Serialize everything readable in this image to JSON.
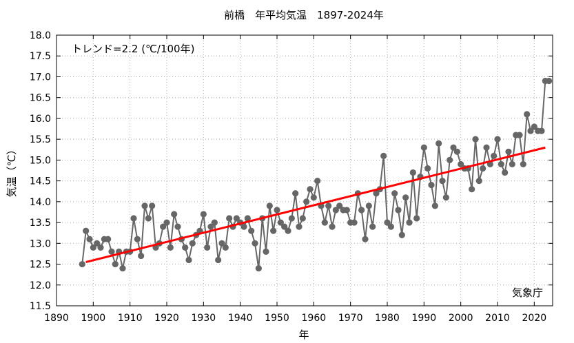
{
  "chart_data": {
    "type": "line",
    "title": "前橋　年平均気温　1897-2024年",
    "xlabel": "年",
    "ylabel": "気温（℃）",
    "trend_label": "トレンド=2.2 (℃/100年)",
    "source_label": "気象庁",
    "xlim": [
      1890,
      2025
    ],
    "ylim": [
      11.5,
      18.0
    ],
    "xticks": [
      1890,
      1900,
      1910,
      1920,
      1930,
      1940,
      1950,
      1960,
      1970,
      1980,
      1990,
      2000,
      2010,
      2020
    ],
    "yticks": [
      11.5,
      12.0,
      12.5,
      13.0,
      13.5,
      14.0,
      14.5,
      15.0,
      15.5,
      16.0,
      16.5,
      17.0,
      17.5,
      18.0
    ],
    "grid": true,
    "colors": {
      "series": "#666666",
      "trend": "#ff0000",
      "grid": "#aaaaaa"
    },
    "series": [
      {
        "name": "年平均気温",
        "x": [
          1897,
          1898,
          1899,
          1900,
          1901,
          1902,
          1903,
          1904,
          1905,
          1906,
          1907,
          1908,
          1909,
          1910,
          1911,
          1912,
          1913,
          1914,
          1915,
          1916,
          1917,
          1918,
          1919,
          1920,
          1921,
          1922,
          1923,
          1924,
          1925,
          1926,
          1927,
          1928,
          1929,
          1930,
          1931,
          1932,
          1933,
          1934,
          1935,
          1936,
          1937,
          1938,
          1939,
          1940,
          1941,
          1942,
          1943,
          1944,
          1945,
          1946,
          1947,
          1948,
          1949,
          1950,
          1951,
          1952,
          1953,
          1954,
          1955,
          1956,
          1957,
          1958,
          1959,
          1960,
          1961,
          1962,
          1963,
          1964,
          1965,
          1966,
          1967,
          1968,
          1969,
          1970,
          1971,
          1972,
          1973,
          1974,
          1975,
          1976,
          1977,
          1978,
          1979,
          1980,
          1981,
          1982,
          1983,
          1984,
          1985,
          1986,
          1987,
          1988,
          1989,
          1990,
          1991,
          1992,
          1993,
          1994,
          1995,
          1996,
          1997,
          1998,
          1999,
          2000,
          2001,
          2002,
          2003,
          2004,
          2005,
          2006,
          2007,
          2008,
          2009,
          2010,
          2011,
          2012,
          2013,
          2014,
          2015,
          2016,
          2017,
          2018,
          2019,
          2020,
          2021,
          2022,
          2023,
          2024
        ],
        "values": [
          12.5,
          13.3,
          13.1,
          12.9,
          13.0,
          12.9,
          13.1,
          13.1,
          12.8,
          12.5,
          12.8,
          12.4,
          12.8,
          12.8,
          13.6,
          13.1,
          12.7,
          13.9,
          13.6,
          13.9,
          12.9,
          13.0,
          13.4,
          13.5,
          12.9,
          13.7,
          13.4,
          13.1,
          12.9,
          12.6,
          13.0,
          13.2,
          13.3,
          13.7,
          12.9,
          13.4,
          13.5,
          12.6,
          13.0,
          12.9,
          13.6,
          13.4,
          13.6,
          13.5,
          13.4,
          13.6,
          13.3,
          13.0,
          12.4,
          13.6,
          12.8,
          13.9,
          13.3,
          13.8,
          13.5,
          13.4,
          13.3,
          13.6,
          14.2,
          13.4,
          13.6,
          14.0,
          14.3,
          14.1,
          14.5,
          13.9,
          13.5,
          13.9,
          13.4,
          13.8,
          13.9,
          13.8,
          13.8,
          13.5,
          13.5,
          14.2,
          13.8,
          13.1,
          13.9,
          13.4,
          14.2,
          14.3,
          15.1,
          13.5,
          13.4,
          14.2,
          13.8,
          13.2,
          14.1,
          13.5,
          14.7,
          13.6,
          14.6,
          15.3,
          14.8,
          14.4,
          13.9,
          15.4,
          14.5,
          14.1,
          15.0,
          15.3,
          15.2,
          14.9,
          14.8,
          14.8,
          14.3,
          15.5,
          14.5,
          14.8,
          15.3,
          14.9,
          15.1,
          15.5,
          14.9,
          14.7,
          15.2,
          14.9,
          15.6,
          15.6,
          14.9,
          16.1,
          15.7,
          15.8,
          15.7,
          15.7,
          16.9,
          16.9
        ]
      }
    ],
    "trend": {
      "x": [
        1898,
        2023
      ],
      "y": [
        12.55,
        15.3
      ]
    }
  }
}
